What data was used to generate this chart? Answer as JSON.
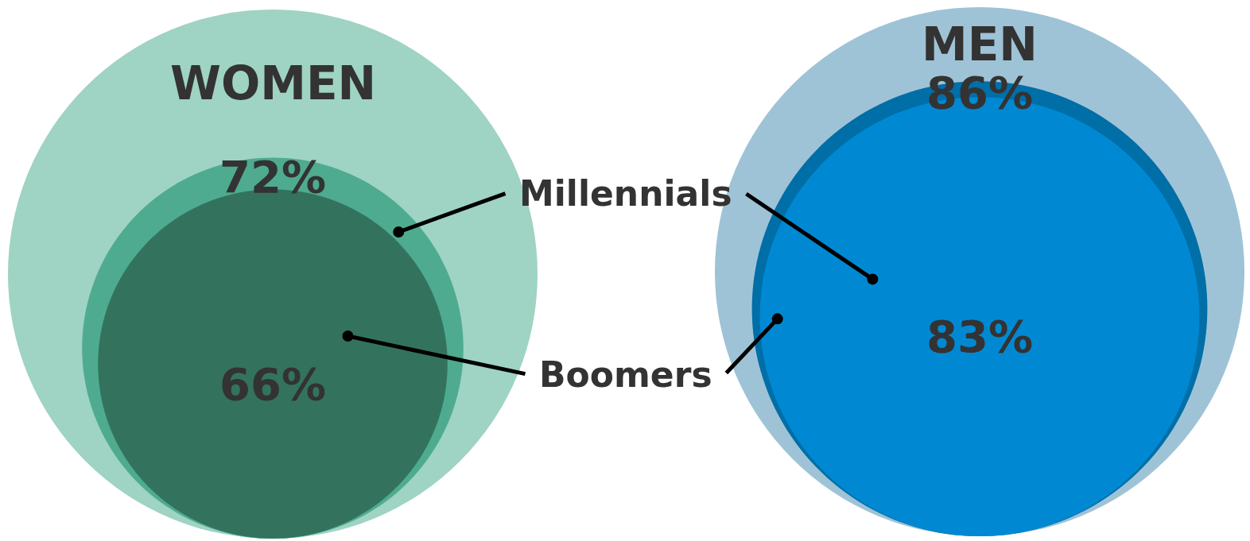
{
  "chart_data": {
    "type": "other",
    "categories": [
      "WOMEN",
      "MEN"
    ],
    "colors": [
      "#9fd3c3",
      "#9fc3d6"
    ],
    "series": [
      {
        "name": "Millennials",
        "colors": [
          "#4eab8f",
          "#006ea7"
        ],
        "values": [
          72,
          86
        ],
        "value_labels": [
          "72%",
          "86%"
        ]
      },
      {
        "name": "Boomers",
        "colors": [
          "#33735e",
          "#0089d2"
        ],
        "values": [
          66,
          83
        ],
        "value_labels": [
          "66%",
          "83%"
        ]
      }
    ]
  }
}
